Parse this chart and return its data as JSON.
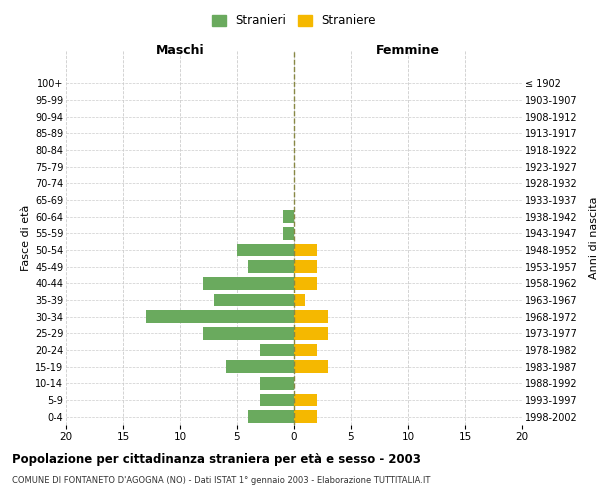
{
  "age_groups": [
    "0-4",
    "5-9",
    "10-14",
    "15-19",
    "20-24",
    "25-29",
    "30-34",
    "35-39",
    "40-44",
    "45-49",
    "50-54",
    "55-59",
    "60-64",
    "65-69",
    "70-74",
    "75-79",
    "80-84",
    "85-89",
    "90-94",
    "95-99",
    "100+"
  ],
  "birth_years": [
    "1998-2002",
    "1993-1997",
    "1988-1992",
    "1983-1987",
    "1978-1982",
    "1973-1977",
    "1968-1972",
    "1963-1967",
    "1958-1962",
    "1953-1957",
    "1948-1952",
    "1943-1947",
    "1938-1942",
    "1933-1937",
    "1928-1932",
    "1923-1927",
    "1918-1922",
    "1913-1917",
    "1908-1912",
    "1903-1907",
    "≤ 1902"
  ],
  "maschi": [
    4,
    3,
    3,
    6,
    3,
    8,
    13,
    7,
    8,
    4,
    5,
    1,
    1,
    0,
    0,
    0,
    0,
    0,
    0,
    0,
    0
  ],
  "femmine": [
    2,
    2,
    0,
    3,
    2,
    3,
    3,
    1,
    2,
    2,
    2,
    0,
    0,
    0,
    0,
    0,
    0,
    0,
    0,
    0,
    0
  ],
  "maschi_color": "#6aaa5e",
  "femmine_color": "#f5b800",
  "center_line_color": "#888844",
  "grid_color": "#cccccc",
  "title": "Popolazione per cittadinanza straniera per età e sesso - 2003",
  "subtitle": "COMUNE DI FONTANETO D'AGOGNA (NO) - Dati ISTAT 1° gennaio 2003 - Elaborazione TUTTITALIA.IT",
  "xlabel_left": "Maschi",
  "xlabel_right": "Femmine",
  "ylabel_left": "Fasce di età",
  "ylabel_right": "Anni di nascita",
  "legend_maschi": "Stranieri",
  "legend_femmine": "Straniere",
  "xlim": 20,
  "bar_height": 0.75,
  "background_color": "#ffffff"
}
